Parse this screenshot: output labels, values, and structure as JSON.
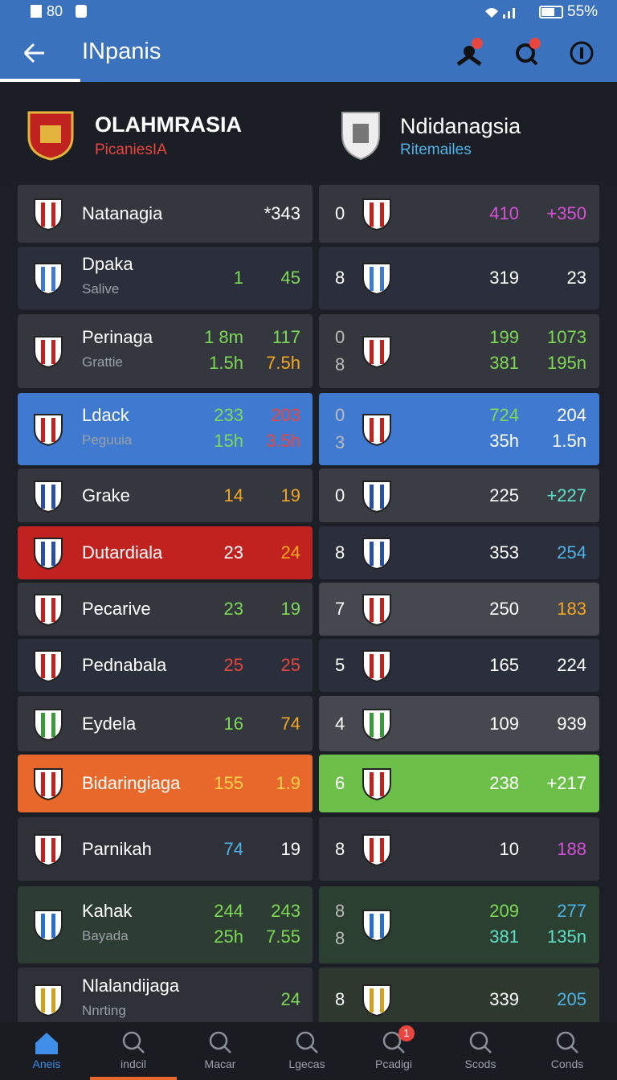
{
  "status_bar": {
    "time": "80",
    "battery": "55%"
  },
  "app_bar": {
    "title": "INpanis"
  },
  "header": {
    "left": {
      "name": "OLAHMRASIA",
      "sub": "PicaniesIA"
    },
    "right": {
      "name": "Ndidanagsia",
      "sub": "Ritemailes"
    }
  },
  "rows": [
    {
      "left": {
        "bg": "#34373d",
        "name": "Natanagia",
        "lines": [
          [
            {
              "text": "*343",
              "color": "#ffffff"
            }
          ]
        ]
      },
      "right": {
        "bg": "#34373d",
        "num": [
          "0"
        ],
        "lines": [
          [
            {
              "text": "410",
              "color": "#d84fd8"
            },
            {
              "text": "+350",
              "color": "#d84fd8"
            }
          ]
        ]
      }
    },
    {
      "left": {
        "bg": "#2a2f3b",
        "name": "Dpaka",
        "sub": "Salive",
        "lines": [
          [
            {
              "text": "1",
              "color": "#7ed957"
            },
            {
              "text": "45",
              "color": "#7ed957"
            }
          ]
        ]
      },
      "right": {
        "bg": "#2a2f3b",
        "num": [
          "8"
        ],
        "lines": [
          [
            {
              "text": "319",
              "color": "#ffffff"
            },
            {
              "text": "23",
              "color": "#ffffff"
            }
          ]
        ]
      }
    },
    {
      "left": {
        "bg": "#34373d",
        "name": "Perinaga",
        "sub": "Grattie",
        "lines": [
          [
            {
              "text": "1 8m",
              "color": "#7ed957"
            },
            {
              "text": "117",
              "color": "#7ed957"
            }
          ],
          [
            {
              "text": "1.5h",
              "color": "#7ed957"
            },
            {
              "text": "7.5h",
              "color": "#f5a623"
            }
          ]
        ]
      },
      "right": {
        "bg": "#34373d",
        "num": [
          "0",
          "8"
        ],
        "lines": [
          [
            {
              "text": "199",
              "color": "#7ed957"
            },
            {
              "text": "1073",
              "color": "#7ed957"
            }
          ],
          [
            {
              "text": "381",
              "color": "#7ed957"
            },
            {
              "text": "195n",
              "color": "#7ed957"
            }
          ]
        ]
      }
    },
    {
      "left": {
        "bg": "#3f7ad0",
        "name": "Ldack",
        "sub": "Peguuia",
        "lines": [
          [
            {
              "text": "233",
              "color": "#7ed957"
            },
            {
              "text": "203",
              "color": "#e8463e"
            }
          ],
          [
            {
              "text": "15h",
              "color": "#7ed957"
            },
            {
              "text": "3.5h",
              "color": "#e8463e"
            }
          ]
        ]
      },
      "right": {
        "bg": "#3f7ad0",
        "num": [
          "0",
          "3"
        ],
        "lines": [
          [
            {
              "text": "724",
              "color": "#7ed957"
            },
            {
              "text": "204",
              "color": "#ffffff"
            }
          ],
          [
            {
              "text": "35h",
              "color": "#ffffff"
            },
            {
              "text": "1.5n",
              "color": "#ffffff"
            }
          ]
        ]
      }
    },
    {
      "left": {
        "bg": "#34373d",
        "name": "Grake",
        "lines": [
          [
            {
              "text": "14",
              "color": "#f5a623"
            },
            {
              "text": "19",
              "color": "#f5a623"
            }
          ]
        ]
      },
      "right": {
        "bg": "#3a3d43",
        "num": [
          "0"
        ],
        "lines": [
          [
            {
              "text": "225",
              "color": "#ffffff"
            },
            {
              "text": "+227",
              "color": "#5fe0c8"
            }
          ]
        ]
      }
    },
    {
      "left": {
        "bg": "#c0231f",
        "name": "Dutardiala",
        "lines": [
          [
            {
              "text": "23",
              "color": "#ffffff"
            },
            {
              "text": "24",
              "color": "#f5a623"
            }
          ]
        ]
      },
      "right": {
        "bg": "#2a2f3b",
        "num": [
          "8"
        ],
        "lines": [
          [
            {
              "text": "353",
              "color": "#ffffff"
            },
            {
              "text": "254",
              "color": "#4fb3e8"
            }
          ]
        ]
      }
    },
    {
      "left": {
        "bg": "#34373d",
        "name": "Pecarive",
        "lines": [
          [
            {
              "text": "23",
              "color": "#7ed957"
            },
            {
              "text": "19",
              "color": "#7ed957"
            }
          ]
        ]
      },
      "right": {
        "bg": "#45484e",
        "num": [
          "7"
        ],
        "lines": [
          [
            {
              "text": "250",
              "color": "#ffffff"
            },
            {
              "text": "183",
              "color": "#f5a623"
            }
          ]
        ]
      }
    },
    {
      "left": {
        "bg": "#2a2f3b",
        "name": "Pednabala",
        "lines": [
          [
            {
              "text": "25",
              "color": "#e8463e"
            },
            {
              "text": "25",
              "color": "#e8463e"
            }
          ]
        ]
      },
      "right": {
        "bg": "#2a2f3b",
        "num": [
          "5"
        ],
        "lines": [
          [
            {
              "text": "165",
              "color": "#ffffff"
            },
            {
              "text": "224",
              "color": "#ffffff"
            }
          ]
        ]
      }
    },
    {
      "left": {
        "bg": "#34373d",
        "name": "Eydela",
        "lines": [
          [
            {
              "text": "16",
              "color": "#7ed957"
            },
            {
              "text": "74",
              "color": "#f5a623"
            }
          ]
        ]
      },
      "right": {
        "bg": "#45484e",
        "num": [
          "4"
        ],
        "lines": [
          [
            {
              "text": "109",
              "color": "#ffffff"
            },
            {
              "text": "939",
              "color": "#ffffff"
            }
          ]
        ]
      }
    },
    {
      "left": {
        "bg": "#e8682c",
        "name": "Bidaringiaga",
        "lines": [
          [
            {
              "text": "155",
              "color": "#f8d24a"
            },
            {
              "text": "1.9",
              "color": "#f8d24a"
            }
          ]
        ]
      },
      "right": {
        "bg": "#6cc04a",
        "num": [
          "6"
        ],
        "lines": [
          [
            {
              "text": "238",
              "color": "#ffffff"
            },
            {
              "text": "+217",
              "color": "#ffffff"
            }
          ]
        ]
      }
    },
    {
      "left": {
        "bg": "#2e3138",
        "name": "Parnikah",
        "lines": [
          [
            {
              "text": "74",
              "color": "#4fb3e8"
            },
            {
              "text": "19",
              "color": "#ffffff"
            }
          ]
        ]
      },
      "right": {
        "bg": "#2e3138",
        "num": [
          "8"
        ],
        "lines": [
          [
            {
              "text": "10",
              "color": "#ffffff"
            },
            {
              "text": "188",
              "color": "#d84fd8"
            }
          ]
        ]
      }
    },
    {
      "left": {
        "bg": "#2e3d33",
        "name": "Kahak",
        "sub": "Bayada",
        "lines": [
          [
            {
              "text": "244",
              "color": "#7ed957"
            },
            {
              "text": "243",
              "color": "#7ed957"
            }
          ],
          [
            {
              "text": "25h",
              "color": "#7ed957"
            },
            {
              "text": "7.55",
              "color": "#7ed957"
            }
          ]
        ]
      },
      "right": {
        "bg": "#2b4030",
        "num": [
          "8",
          "8"
        ],
        "lines": [
          [
            {
              "text": "209",
              "color": "#7ed957"
            },
            {
              "text": "277",
              "color": "#4fb3e8"
            }
          ],
          [
            {
              "text": "381",
              "color": "#5fe0c8"
            },
            {
              "text": "135n",
              "color": "#5fe0c8"
            }
          ]
        ]
      }
    },
    {
      "left": {
        "bg": "#2e3138",
        "name": "Nlalandijaga",
        "sub": "Nnrting",
        "lines": [
          [
            {
              "text": "24",
              "color": "#7ed957"
            }
          ]
        ]
      },
      "right": {
        "bg": "#2e3a30",
        "num": [
          "8"
        ],
        "lines": [
          [
            {
              "text": "339",
              "color": "#ffffff"
            },
            {
              "text": "205",
              "color": "#4fb3e8"
            }
          ]
        ]
      }
    }
  ],
  "nav": {
    "items": [
      "Aneis",
      "indcil",
      "Macar",
      "Lgecas",
      "Pcadigi",
      "Scods",
      "Conds"
    ],
    "badge": "1"
  }
}
